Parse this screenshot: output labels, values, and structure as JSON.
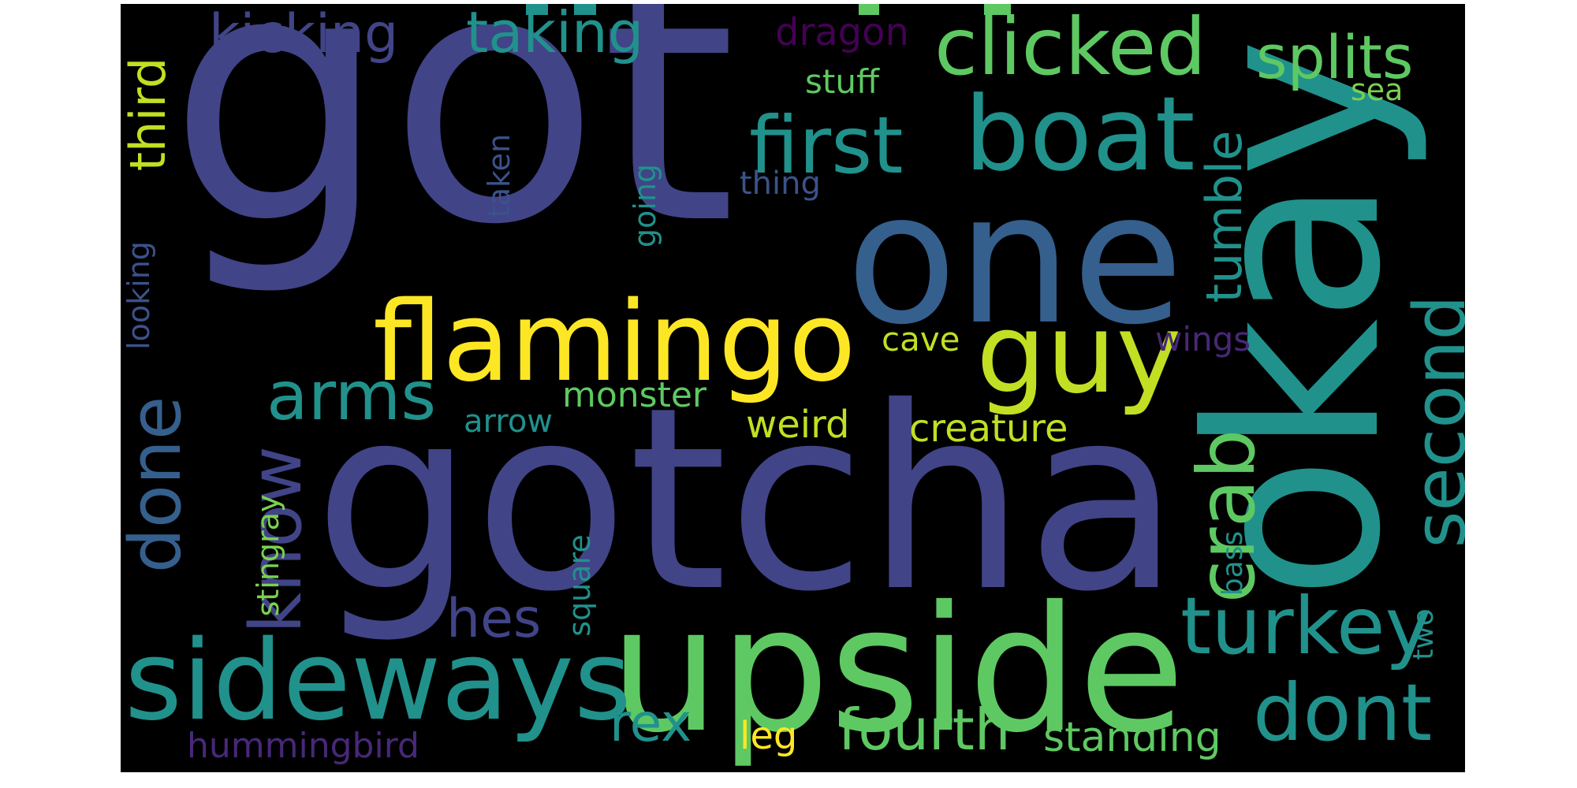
{
  "word_cloud": {
    "background": "#000000",
    "words": {
      "got": "got",
      "gotcha": "gotcha",
      "okay": "okay",
      "one": "one",
      "upside": "upside",
      "flamingo": "flamingo",
      "sideways": "sideways",
      "boat": "boat",
      "guy": "guy",
      "first": "first",
      "clicked": "clicked",
      "dont": "dont",
      "turkey": "turkey",
      "second": "second",
      "crab": "crab",
      "know": "know",
      "done": "done",
      "arms": "arms",
      "splits": "splits",
      "kicking": "kicking",
      "taking": "taking",
      "fourth": "fourth",
      "third": "third",
      "tumble": "tumble",
      "hes": "hes",
      "rex": "rex",
      "standing": "standing",
      "creature": "creature",
      "dragon": "dragon",
      "monster": "monster",
      "weird": "weird",
      "arrow": "arrow",
      "cave": "cave",
      "wings": "wings",
      "stuff": "stuff",
      "sea": "sea",
      "thing": "thing",
      "taken": "taken",
      "going": "going",
      "looking": "looking",
      "stingray": "stingray",
      "square": "square",
      "hummingbird": "hummingbird",
      "leg": "leg",
      "bass": "bass",
      "two": "two"
    },
    "colors": {
      "indigo": "#414487",
      "blue": "#355f8d",
      "teal": "#21918c",
      "teal_light": "#2a9d8f",
      "green": "#5ec962",
      "green_light": "#7ad151",
      "yellow": "#fde725",
      "yellow_green": "#c2df23",
      "purple": "#440154",
      "purple_mid": "#482878",
      "slate": "#3b528b"
    }
  }
}
